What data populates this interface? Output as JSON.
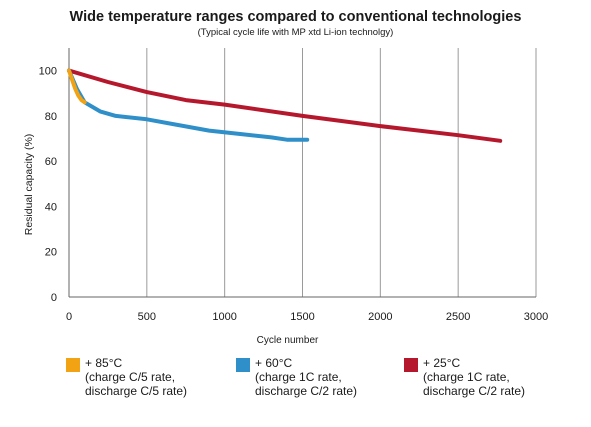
{
  "chart_data": {
    "type": "line",
    "title": "Wide temperature ranges compared to conventional technologies",
    "subtitle": "(Typical cycle life with MP xtd Li-ion technolgy)",
    "xlabel": "Cycle number",
    "ylabel": "Residual capacity (%)",
    "xlim": [
      0,
      3000
    ],
    "ylim": [
      0,
      110
    ],
    "xticks": [
      0,
      500,
      1000,
      1500,
      2000,
      2500,
      3000
    ],
    "yticks": [
      0,
      20,
      40,
      60,
      80,
      100
    ],
    "grid": "vertical",
    "legend_position": "bottom",
    "series": [
      {
        "name": "+ 85°C",
        "legend_lines": [
          "+ 85°C",
          "(charge C/5 rate,",
          "discharge C/5 rate)"
        ],
        "color": "#f2a313",
        "x": [
          0,
          20,
          40,
          60,
          80,
          100
        ],
        "y": [
          100,
          96,
          92,
          89,
          87,
          86
        ]
      },
      {
        "name": "+ 60°C",
        "legend_lines": [
          "+ 60°C",
          "(charge 1C rate,",
          "discharge C/2 rate)"
        ],
        "color": "#2f8fc9",
        "x": [
          0,
          50,
          100,
          200,
          300,
          500,
          700,
          900,
          1100,
          1300,
          1400,
          1450,
          1530
        ],
        "y": [
          100,
          92,
          86,
          82,
          80,
          78.5,
          76,
          73.5,
          72,
          70.5,
          69.5,
          69.5,
          69.5
        ]
      },
      {
        "name": "+ 25°C",
        "legend_lines": [
          "+ 25°C",
          "(charge 1C rate,",
          "discharge C/2 rate)"
        ],
        "color": "#b5182c",
        "x": [
          0,
          250,
          500,
          750,
          1000,
          1500,
          2000,
          2500,
          2770
        ],
        "y": [
          100,
          95,
          90.5,
          87,
          85,
          80,
          75.5,
          71.5,
          69
        ]
      }
    ]
  }
}
